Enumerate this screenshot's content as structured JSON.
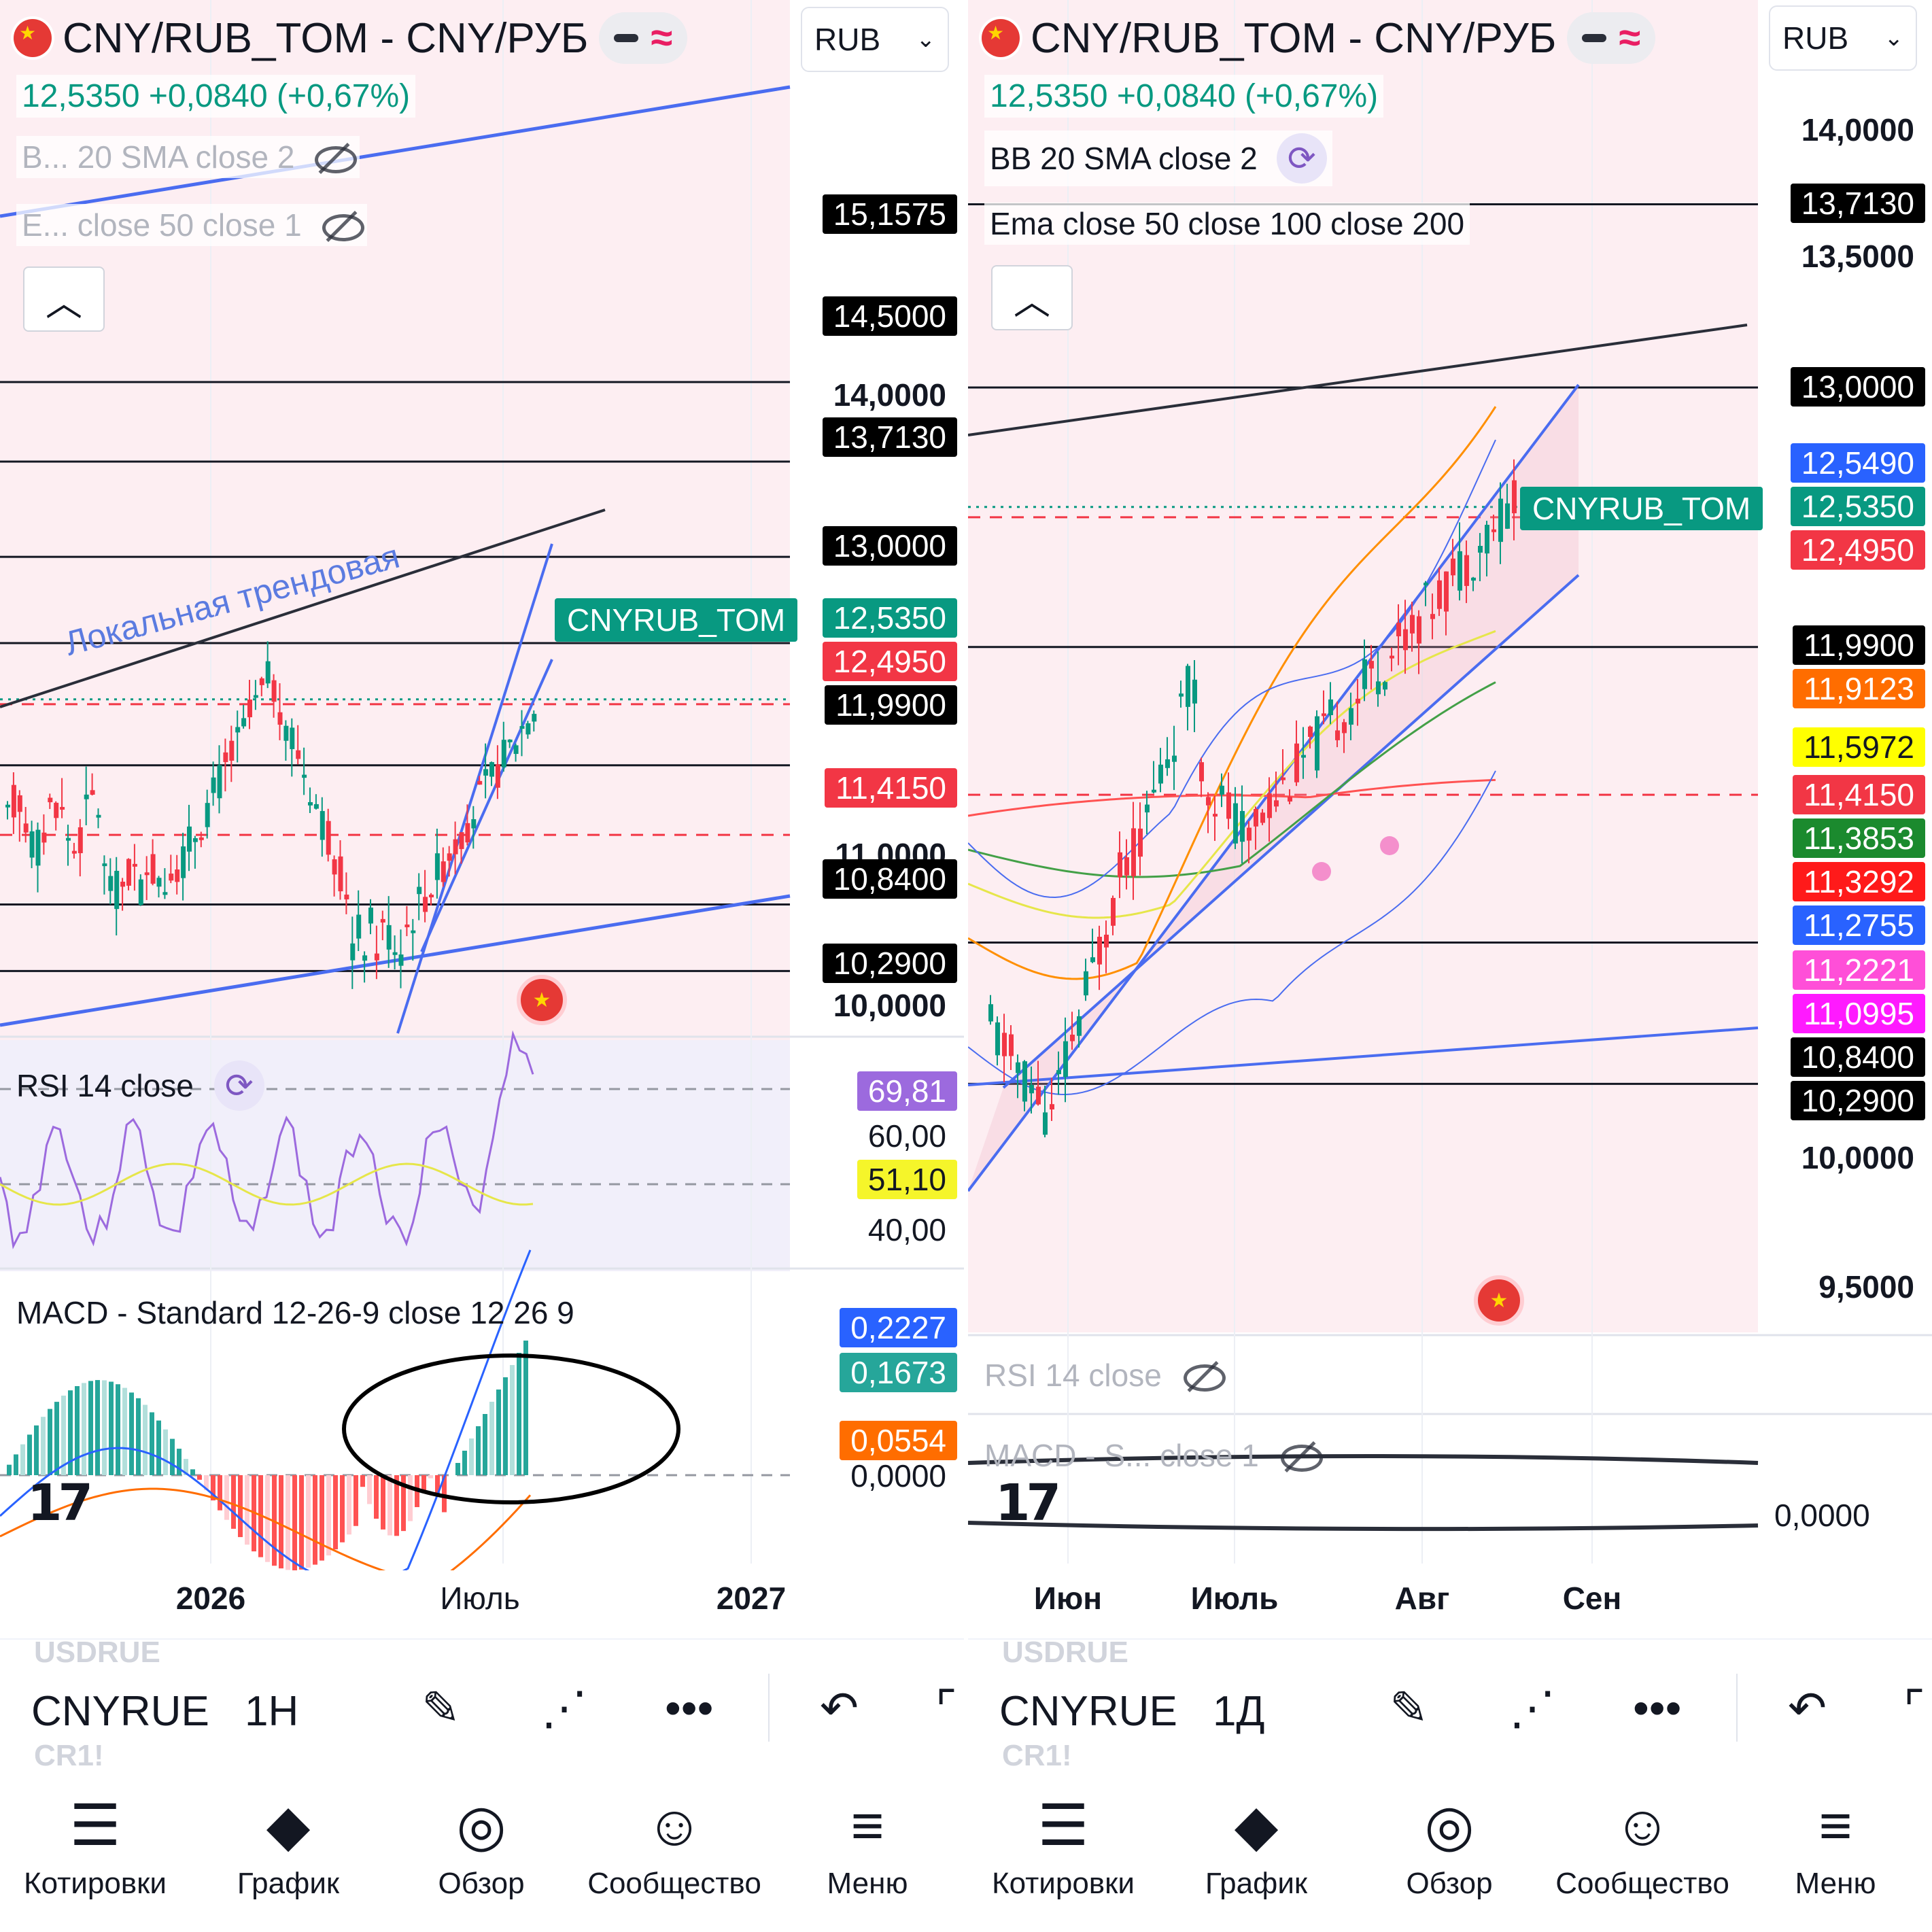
{
  "left": {
    "header": {
      "symbol": "CNY/RUB_TOM - CNY/РУБ",
      "quote": "12,5350 +0,0840 (+0,67%)",
      "currency": "RUB"
    },
    "indicators": [
      {
        "label": "B... 20 SMA close 2",
        "hidden": true
      },
      {
        "label": "E... close 50 close 1",
        "hidden": true
      }
    ],
    "annotation": "Локальная трендовая",
    "symbol_tag": "CNYRUB_TOM",
    "price_labels": [
      {
        "text": "15,1575",
        "bg": "#000000",
        "color": "#ffffff"
      },
      {
        "text": "14,5000",
        "bg": "#000000",
        "color": "#ffffff"
      },
      {
        "text": "14,0000",
        "bg": "",
        "color": "#131722"
      },
      {
        "text": "13,7130",
        "bg": "#000000",
        "color": "#ffffff"
      },
      {
        "text": "13,0000",
        "bg": "#000000",
        "color": "#ffffff"
      },
      {
        "text": "12,5350",
        "bg": "#089981",
        "color": "#ffffff"
      },
      {
        "text": "12,4950",
        "bg": "#f23645",
        "color": "#ffffff"
      },
      {
        "text": "11,9900",
        "bg": "#000000",
        "color": "#ffffff"
      },
      {
        "text": "11,4150",
        "bg": "#f23645",
        "color": "#ffffff"
      },
      {
        "text": "11,0000",
        "bg": "",
        "color": "#131722"
      },
      {
        "text": "10,8400",
        "bg": "#000000",
        "color": "#ffffff"
      },
      {
        "text": "10,2900",
        "bg": "#000000",
        "color": "#ffffff"
      },
      {
        "text": "10,0000",
        "bg": "",
        "color": "#131722"
      }
    ],
    "rsi": {
      "title": "RSI 14 close",
      "labels": [
        {
          "text": "69,81",
          "bg": "#9c6ade",
          "color": "#ffffff"
        },
        {
          "text": "60,00",
          "bg": "",
          "color": "#131722"
        },
        {
          "text": "51,10",
          "bg": "#f5f52a",
          "color": "#131722"
        },
        {
          "text": "40,00",
          "bg": "",
          "color": "#131722"
        }
      ]
    },
    "macd": {
      "title": "MACD - Standard 12-26-9 close 12 26 9",
      "labels": [
        {
          "text": "0,2227",
          "bg": "#2962ff",
          "color": "#ffffff"
        },
        {
          "text": "0,1673",
          "bg": "#26a69a",
          "color": "#ffffff"
        },
        {
          "text": "0,0554",
          "bg": "#ff6d00",
          "color": "#ffffff"
        },
        {
          "text": "0,0000",
          "bg": "",
          "color": "#131722"
        }
      ]
    },
    "time_labels": [
      {
        "text": "2026",
        "bold": true
      },
      {
        "text": "Июль",
        "bold": false
      },
      {
        "text": "2027",
        "bold": true
      }
    ],
    "toolbar": {
      "ghost_above": "USDRUE",
      "symbol": "CNYRUE",
      "ghost_below": "CR1!",
      "interval": "1H"
    }
  },
  "right": {
    "header": {
      "symbol": "CNY/RUB_TOM - CNY/РУБ",
      "quote": "12,5350 +0,0840 (+0,67%)",
      "currency": "RUB"
    },
    "indicators": [
      {
        "label": "BB 20 SMA close 2",
        "hidden": false
      },
      {
        "label": "Ema close 50 close 100 close 200",
        "hidden": false
      }
    ],
    "symbol_tag": "CNYRUB_TOM",
    "price_labels": [
      {
        "text": "14,0000",
        "bg": "",
        "color": "#131722"
      },
      {
        "text": "13,7130",
        "bg": "#000000",
        "color": "#ffffff"
      },
      {
        "text": "13,5000",
        "bg": "",
        "color": "#131722"
      },
      {
        "text": "13,0000",
        "bg": "#000000",
        "color": "#ffffff"
      },
      {
        "text": "12,5490",
        "bg": "#2962ff",
        "color": "#ffffff"
      },
      {
        "text": "12,5350",
        "bg": "#089981",
        "color": "#ffffff"
      },
      {
        "text": "12,4950",
        "bg": "#f23645",
        "color": "#ffffff"
      },
      {
        "text": "11,9900",
        "bg": "#000000",
        "color": "#ffffff"
      },
      {
        "text": "11,9123",
        "bg": "#ff6d00",
        "color": "#ffffff"
      },
      {
        "text": "11,5972",
        "bg": "#ffff00",
        "color": "#131722"
      },
      {
        "text": "11,4150",
        "bg": "#f23645",
        "color": "#ffffff"
      },
      {
        "text": "11,3853",
        "bg": "#1b8a2e",
        "color": "#ffffff"
      },
      {
        "text": "11,3292",
        "bg": "#ff1a1a",
        "color": "#ffffff"
      },
      {
        "text": "11,2755",
        "bg": "#2962ff",
        "color": "#ffffff"
      },
      {
        "text": "11,2221",
        "bg": "#ff4fd8",
        "color": "#ffffff"
      },
      {
        "text": "11,0995",
        "bg": "#ff1aff",
        "color": "#ffffff"
      },
      {
        "text": "10,8400",
        "bg": "#000000",
        "color": "#ffffff"
      },
      {
        "text": "10,2900",
        "bg": "#000000",
        "color": "#ffffff"
      },
      {
        "text": "10,0000",
        "bg": "",
        "color": "#131722"
      },
      {
        "text": "9,5000",
        "bg": "",
        "color": "#131722"
      }
    ],
    "rsi": {
      "title": "RSI 14 close",
      "hidden": true
    },
    "macd": {
      "title": "MACD - S... close 1",
      "hidden": true,
      "zero_label": "0,0000"
    },
    "time_labels": [
      {
        "text": "Июн",
        "bold": true
      },
      {
        "text": "Июль",
        "bold": true
      },
      {
        "text": "Авг",
        "bold": true
      },
      {
        "text": "Сен",
        "bold": true
      }
    ],
    "toolbar": {
      "ghost_above": "USDRUE",
      "symbol": "CNYRUE",
      "ghost_below": "CR1!",
      "interval": "1Д"
    }
  },
  "nav": [
    {
      "label": "Котировки",
      "icon": "quotes-icon"
    },
    {
      "label": "График",
      "icon": "chart-icon"
    },
    {
      "label": "Обзор",
      "icon": "compass-icon"
    },
    {
      "label": "Сообщество",
      "icon": "community-icon"
    },
    {
      "label": "Меню",
      "icon": "menu-icon"
    }
  ],
  "colors": {
    "up": "#089981",
    "down": "#f23645",
    "channel": "#4a6cf0",
    "rsi": "#9c6ade",
    "rsi_ma": "#e6e64a",
    "macd": "#2962ff",
    "signal": "#ff6d00"
  }
}
